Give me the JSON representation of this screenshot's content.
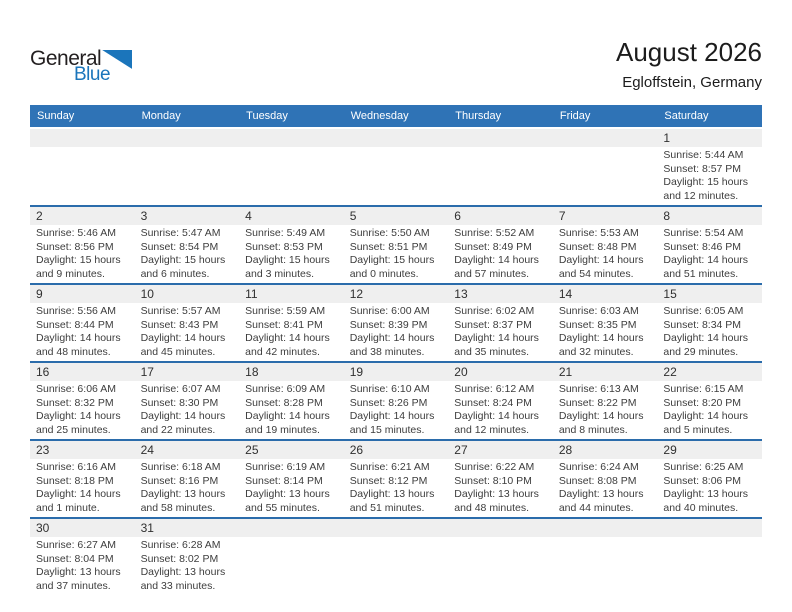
{
  "logo": {
    "part1": "General",
    "part2": "Blue"
  },
  "header": {
    "title": "August 2026",
    "location": "Egloffstein, Germany"
  },
  "colors": {
    "header_blue": "#2f73b6",
    "separator_blue": "#2b6cab",
    "band_gray": "#efefef",
    "logo_blue": "#1b75bb"
  },
  "weekdays": [
    "Sunday",
    "Monday",
    "Tuesday",
    "Wednesday",
    "Thursday",
    "Friday",
    "Saturday"
  ],
  "weeks": [
    [
      null,
      null,
      null,
      null,
      null,
      null,
      {
        "day": "1",
        "sunrise": "Sunrise: 5:44 AM",
        "sunset": "Sunset: 8:57 PM",
        "daylight1": "Daylight: 15 hours",
        "daylight2": "and 12 minutes."
      }
    ],
    [
      {
        "day": "2",
        "sunrise": "Sunrise: 5:46 AM",
        "sunset": "Sunset: 8:56 PM",
        "daylight1": "Daylight: 15 hours",
        "daylight2": "and 9 minutes."
      },
      {
        "day": "3",
        "sunrise": "Sunrise: 5:47 AM",
        "sunset": "Sunset: 8:54 PM",
        "daylight1": "Daylight: 15 hours",
        "daylight2": "and 6 minutes."
      },
      {
        "day": "4",
        "sunrise": "Sunrise: 5:49 AM",
        "sunset": "Sunset: 8:53 PM",
        "daylight1": "Daylight: 15 hours",
        "daylight2": "and 3 minutes."
      },
      {
        "day": "5",
        "sunrise": "Sunrise: 5:50 AM",
        "sunset": "Sunset: 8:51 PM",
        "daylight1": "Daylight: 15 hours",
        "daylight2": "and 0 minutes."
      },
      {
        "day": "6",
        "sunrise": "Sunrise: 5:52 AM",
        "sunset": "Sunset: 8:49 PM",
        "daylight1": "Daylight: 14 hours",
        "daylight2": "and 57 minutes."
      },
      {
        "day": "7",
        "sunrise": "Sunrise: 5:53 AM",
        "sunset": "Sunset: 8:48 PM",
        "daylight1": "Daylight: 14 hours",
        "daylight2": "and 54 minutes."
      },
      {
        "day": "8",
        "sunrise": "Sunrise: 5:54 AM",
        "sunset": "Sunset: 8:46 PM",
        "daylight1": "Daylight: 14 hours",
        "daylight2": "and 51 minutes."
      }
    ],
    [
      {
        "day": "9",
        "sunrise": "Sunrise: 5:56 AM",
        "sunset": "Sunset: 8:44 PM",
        "daylight1": "Daylight: 14 hours",
        "daylight2": "and 48 minutes."
      },
      {
        "day": "10",
        "sunrise": "Sunrise: 5:57 AM",
        "sunset": "Sunset: 8:43 PM",
        "daylight1": "Daylight: 14 hours",
        "daylight2": "and 45 minutes."
      },
      {
        "day": "11",
        "sunrise": "Sunrise: 5:59 AM",
        "sunset": "Sunset: 8:41 PM",
        "daylight1": "Daylight: 14 hours",
        "daylight2": "and 42 minutes."
      },
      {
        "day": "12",
        "sunrise": "Sunrise: 6:00 AM",
        "sunset": "Sunset: 8:39 PM",
        "daylight1": "Daylight: 14 hours",
        "daylight2": "and 38 minutes."
      },
      {
        "day": "13",
        "sunrise": "Sunrise: 6:02 AM",
        "sunset": "Sunset: 8:37 PM",
        "daylight1": "Daylight: 14 hours",
        "daylight2": "and 35 minutes."
      },
      {
        "day": "14",
        "sunrise": "Sunrise: 6:03 AM",
        "sunset": "Sunset: 8:35 PM",
        "daylight1": "Daylight: 14 hours",
        "daylight2": "and 32 minutes."
      },
      {
        "day": "15",
        "sunrise": "Sunrise: 6:05 AM",
        "sunset": "Sunset: 8:34 PM",
        "daylight1": "Daylight: 14 hours",
        "daylight2": "and 29 minutes."
      }
    ],
    [
      {
        "day": "16",
        "sunrise": "Sunrise: 6:06 AM",
        "sunset": "Sunset: 8:32 PM",
        "daylight1": "Daylight: 14 hours",
        "daylight2": "and 25 minutes."
      },
      {
        "day": "17",
        "sunrise": "Sunrise: 6:07 AM",
        "sunset": "Sunset: 8:30 PM",
        "daylight1": "Daylight: 14 hours",
        "daylight2": "and 22 minutes."
      },
      {
        "day": "18",
        "sunrise": "Sunrise: 6:09 AM",
        "sunset": "Sunset: 8:28 PM",
        "daylight1": "Daylight: 14 hours",
        "daylight2": "and 19 minutes."
      },
      {
        "day": "19",
        "sunrise": "Sunrise: 6:10 AM",
        "sunset": "Sunset: 8:26 PM",
        "daylight1": "Daylight: 14 hours",
        "daylight2": "and 15 minutes."
      },
      {
        "day": "20",
        "sunrise": "Sunrise: 6:12 AM",
        "sunset": "Sunset: 8:24 PM",
        "daylight1": "Daylight: 14 hours",
        "daylight2": "and 12 minutes."
      },
      {
        "day": "21",
        "sunrise": "Sunrise: 6:13 AM",
        "sunset": "Sunset: 8:22 PM",
        "daylight1": "Daylight: 14 hours",
        "daylight2": "and 8 minutes."
      },
      {
        "day": "22",
        "sunrise": "Sunrise: 6:15 AM",
        "sunset": "Sunset: 8:20 PM",
        "daylight1": "Daylight: 14 hours",
        "daylight2": "and 5 minutes."
      }
    ],
    [
      {
        "day": "23",
        "sunrise": "Sunrise: 6:16 AM",
        "sunset": "Sunset: 8:18 PM",
        "daylight1": "Daylight: 14 hours",
        "daylight2": "and 1 minute."
      },
      {
        "day": "24",
        "sunrise": "Sunrise: 6:18 AM",
        "sunset": "Sunset: 8:16 PM",
        "daylight1": "Daylight: 13 hours",
        "daylight2": "and 58 minutes."
      },
      {
        "day": "25",
        "sunrise": "Sunrise: 6:19 AM",
        "sunset": "Sunset: 8:14 PM",
        "daylight1": "Daylight: 13 hours",
        "daylight2": "and 55 minutes."
      },
      {
        "day": "26",
        "sunrise": "Sunrise: 6:21 AM",
        "sunset": "Sunset: 8:12 PM",
        "daylight1": "Daylight: 13 hours",
        "daylight2": "and 51 minutes."
      },
      {
        "day": "27",
        "sunrise": "Sunrise: 6:22 AM",
        "sunset": "Sunset: 8:10 PM",
        "daylight1": "Daylight: 13 hours",
        "daylight2": "and 48 minutes."
      },
      {
        "day": "28",
        "sunrise": "Sunrise: 6:24 AM",
        "sunset": "Sunset: 8:08 PM",
        "daylight1": "Daylight: 13 hours",
        "daylight2": "and 44 minutes."
      },
      {
        "day": "29",
        "sunrise": "Sunrise: 6:25 AM",
        "sunset": "Sunset: 8:06 PM",
        "daylight1": "Daylight: 13 hours",
        "daylight2": "and 40 minutes."
      }
    ],
    [
      {
        "day": "30",
        "sunrise": "Sunrise: 6:27 AM",
        "sunset": "Sunset: 8:04 PM",
        "daylight1": "Daylight: 13 hours",
        "daylight2": "and 37 minutes."
      },
      {
        "day": "31",
        "sunrise": "Sunrise: 6:28 AM",
        "sunset": "Sunset: 8:02 PM",
        "daylight1": "Daylight: 13 hours",
        "daylight2": "and 33 minutes."
      },
      null,
      null,
      null,
      null,
      null
    ]
  ]
}
